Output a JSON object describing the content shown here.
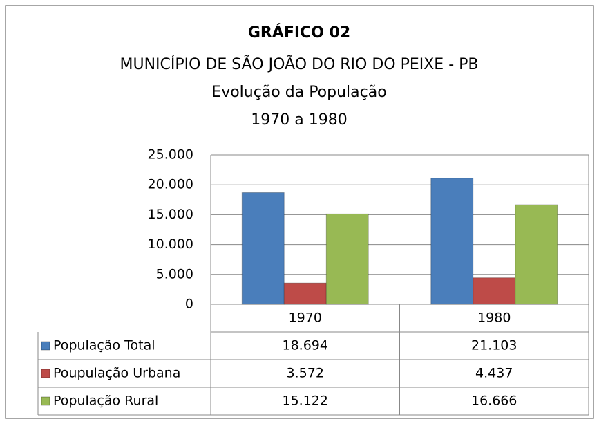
{
  "chart_data": {
    "type": "bar",
    "title": "GRÁFICO 02",
    "subtitle": [
      "MUNICÍPIO DE SÃO JOÃO DO RIO DO PEIXE - PB",
      "Evolução da População",
      "1970 a 1980"
    ],
    "categories": [
      "1970",
      "1980"
    ],
    "series": [
      {
        "name": "População Total",
        "color": "#4a7ebb",
        "values": [
          18694,
          21103
        ],
        "value_labels": [
          "18.694",
          "21.103"
        ]
      },
      {
        "name": "Poupulação Urbana",
        "color": "#be4b48",
        "values": [
          3572,
          4437
        ],
        "value_labels": [
          "3.572",
          "4.437"
        ]
      },
      {
        "name": "População Rural",
        "color": "#98b954",
        "values": [
          15122,
          16666
        ],
        "value_labels": [
          "15.122",
          "16.666"
        ]
      }
    ],
    "ylim": [
      0,
      25000
    ],
    "yticks": [
      0,
      {
        "value": 5000,
        "label": "5.000"
      },
      {
        "value": 10000,
        "label": "10.000"
      },
      {
        "value": 15000,
        "label": "15.000"
      },
      {
        "value": 20000,
        "label": "20.000"
      },
      {
        "value": 25000,
        "label": "25.000"
      }
    ],
    "grid": true
  }
}
